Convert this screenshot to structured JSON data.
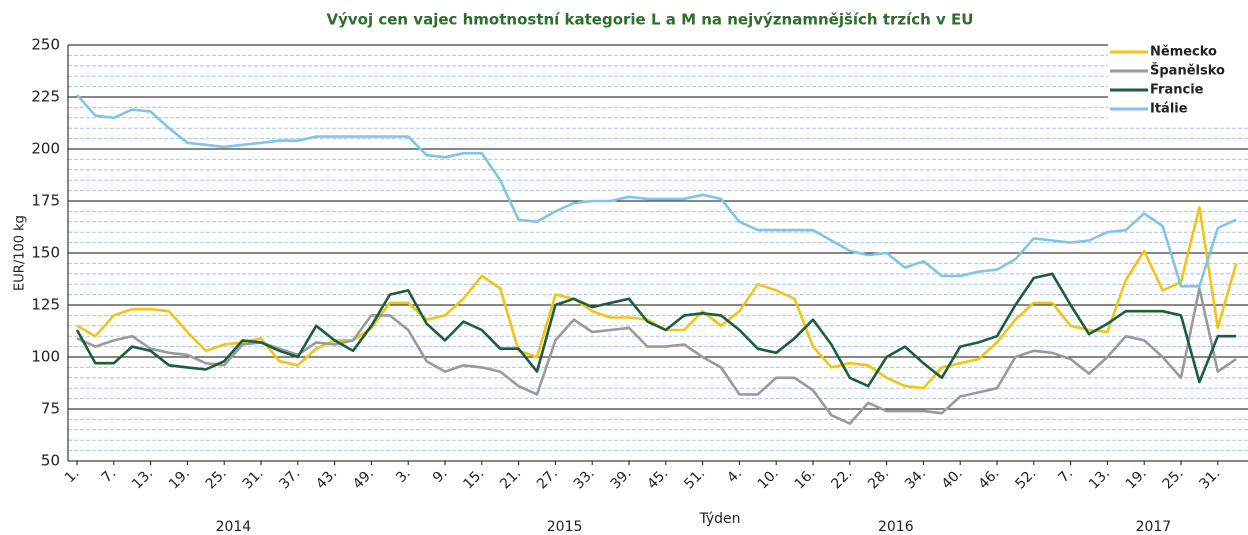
{
  "chart_data": {
    "type": "line",
    "title": "Vývoj cen vajec hmotnostní kategorie L a M na nejvýznamnějších trzích v EU",
    "x_label": "Týden",
    "y_label": "EUR/100 kg",
    "categories": [
      "1.",
      null,
      "7.",
      null,
      "13.",
      null,
      "19.",
      null,
      "25.",
      null,
      "31.",
      null,
      "37.",
      null,
      "43.",
      null,
      "49.",
      null,
      "3.",
      null,
      "9.",
      null,
      "15.",
      null,
      "21.",
      null,
      "27.",
      null,
      "33.",
      null,
      "39.",
      null,
      "45.",
      null,
      "51.",
      null,
      "4.",
      null,
      "10.",
      null,
      "16.",
      null,
      "22.",
      null,
      "28.",
      null,
      "34.",
      null,
      "40.",
      null,
      "46.",
      null,
      "52.",
      null,
      "7.",
      null,
      "13.",
      null,
      "19.",
      null,
      "25.",
      null,
      "31.",
      null
    ],
    "x_groups": [
      "2014",
      "2015",
      "2016",
      "2017"
    ],
    "series": [
      {
        "name": "Německo",
        "color": "#f3c316",
        "values": [
          115,
          110,
          120,
          123,
          123,
          122,
          112,
          103,
          106,
          107,
          109,
          98,
          96,
          104,
          108,
          108,
          114,
          126,
          126,
          118,
          120,
          128,
          139,
          133,
          103,
          100,
          130,
          128,
          122,
          119,
          119,
          118,
          113,
          113,
          122,
          115,
          122,
          135,
          132,
          128,
          105,
          95,
          97,
          96,
          90,
          86,
          85,
          95,
          97,
          99,
          107,
          118,
          126,
          126,
          115,
          113,
          112,
          137,
          151,
          132,
          136,
          172,
          114,
          145
        ]
      },
      {
        "name": "Španělsko",
        "color": "#9a9a9a",
        "values": [
          109,
          105,
          108,
          110,
          104,
          102,
          101,
          97,
          96,
          106,
          107,
          104,
          101,
          107,
          106,
          108,
          120,
          120,
          113,
          98,
          93,
          96,
          95,
          93,
          86,
          82,
          108,
          118,
          112,
          113,
          114,
          105,
          105,
          106,
          100,
          95,
          82,
          82,
          90,
          90,
          84,
          72,
          68,
          78,
          74,
          74,
          74,
          73,
          81,
          83,
          85,
          100,
          103,
          102,
          99,
          92,
          100,
          110,
          108,
          100,
          90,
          133,
          93,
          99
        ]
      },
      {
        "name": "Francie",
        "color": "#1b5e3b",
        "values": [
          113,
          97,
          97,
          105,
          103,
          96,
          95,
          94,
          98,
          108,
          107,
          103,
          100,
          115,
          108,
          103,
          115,
          130,
          132,
          116,
          108,
          117,
          113,
          104,
          104,
          93,
          125,
          128,
          124,
          126,
          128,
          117,
          113,
          120,
          121,
          120,
          113,
          104,
          102,
          109,
          118,
          106,
          90,
          86,
          100,
          105,
          97,
          90,
          105,
          107,
          110,
          125,
          138,
          140,
          125,
          111,
          116,
          122,
          122,
          122,
          120,
          88,
          110,
          110
        ]
      },
      {
        "name": "Itálie",
        "color": "#7fc6e6",
        "values": [
          226,
          216,
          215,
          219,
          218,
          210,
          203,
          202,
          201,
          202,
          203,
          204,
          204,
          206,
          206,
          206,
          206,
          206,
          206,
          197,
          196,
          198,
          198,
          185,
          166,
          165,
          170,
          174,
          175,
          175,
          177,
          176,
          176,
          176,
          178,
          176,
          165,
          161,
          161,
          161,
          161,
          156,
          151,
          149,
          150,
          143,
          146,
          139,
          139,
          141,
          142,
          147,
          157,
          156,
          155,
          156,
          160,
          161,
          169,
          163,
          134,
          134,
          162,
          166
        ]
      }
    ],
    "ylim": [
      50,
      250
    ],
    "yticks": [
      50,
      75,
      100,
      125,
      150,
      175,
      200,
      225,
      250
    ],
    "grid": true,
    "legend": "top-right"
  }
}
